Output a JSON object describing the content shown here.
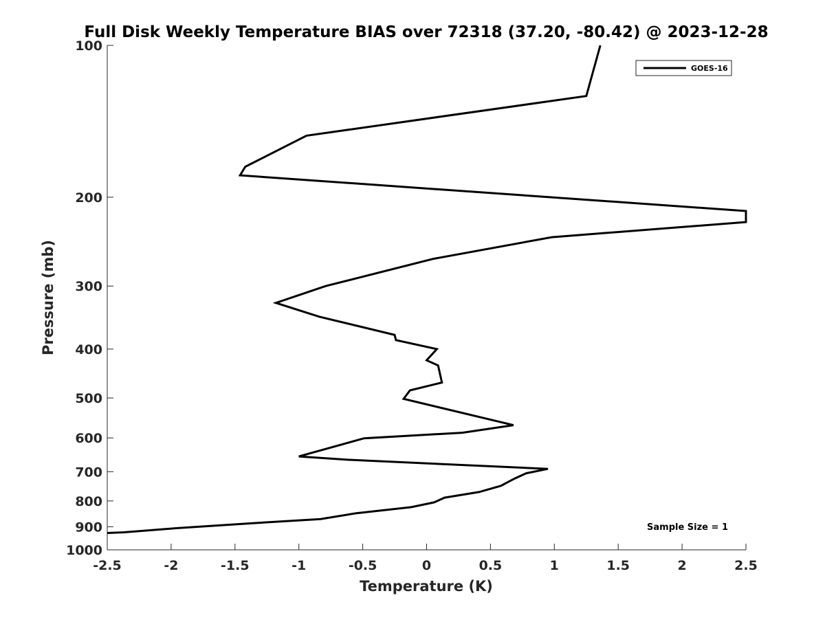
{
  "chart_data": {
    "type": "line",
    "title": "Full Disk Weekly Temperature BIAS over 72318 (37.20, -80.42) @ 2023-12-28",
    "xlabel": "Temperature (K)",
    "ylabel": "Pressure (mb)",
    "xlim": [
      -2.5,
      2.5
    ],
    "ylim": [
      100,
      1000
    ],
    "y_scale": "log",
    "y_direction": "reversed",
    "grid": false,
    "legend_position": "top-right",
    "x_ticks": [
      -2.5,
      -2,
      -1.5,
      -1,
      -0.5,
      0,
      0.5,
      1,
      1.5,
      2,
      2.5
    ],
    "x_tick_labels": [
      "-2.5",
      "-2",
      "-1.5",
      "-1",
      "-0.5",
      "0",
      "0.5",
      "1",
      "1.5",
      "2",
      "2.5"
    ],
    "y_ticks": [
      100,
      200,
      300,
      400,
      500,
      600,
      700,
      800,
      900,
      1000
    ],
    "y_tick_labels": [
      "100",
      "200",
      "300",
      "400",
      "500",
      "600",
      "700",
      "800",
      "900",
      "1000"
    ],
    "series": [
      {
        "name": "GOES-16",
        "color": "#000000",
        "x": [
          1.36,
          1.25,
          -0.94,
          -1.42,
          -1.46,
          2.5,
          2.5,
          0.98,
          0.05,
          -0.79,
          -1.18,
          -0.84,
          -0.25,
          -0.24,
          0.08,
          0.0,
          0.09,
          0.12,
          -0.13,
          -0.18,
          0.68,
          0.28,
          -0.49,
          -1.0,
          -0.61,
          0.95,
          0.78,
          0.69,
          0.58,
          0.41,
          0.14,
          0.06,
          -0.12,
          -0.55,
          -0.83,
          -1.35,
          -1.96,
          -2.37,
          -2.5
        ],
        "y": [
          100,
          126,
          151,
          174,
          181,
          213,
          224,
          240,
          265,
          300,
          324,
          345,
          375,
          384,
          400,
          421,
          431,
          466,
          483,
          502,
          566,
          586,
          601,
          653,
          663,
          691,
          705,
          722,
          747,
          768,
          788,
          805,
          823,
          846,
          869,
          885,
          906,
          923,
          926
        ]
      }
    ],
    "annotation": "Sample Size = 1"
  }
}
